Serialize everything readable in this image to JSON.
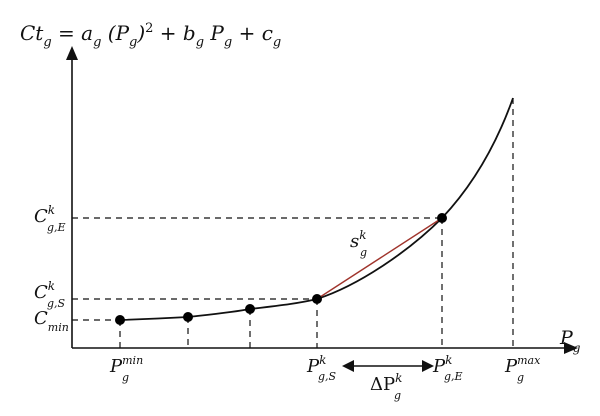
{
  "equation": {
    "prefix": "Ct",
    "sub_g": "g",
    "eq": " = a",
    "paren": " (P",
    "close_sq": ")",
    "sup_two": "2",
    "plus_b": " + b",
    "mid_p": " P",
    "plus_c": " + c"
  },
  "axis_x_label": {
    "main": "P",
    "sub": "g"
  },
  "y_labels": {
    "c_e": {
      "main": "C",
      "sup": "k",
      "sub": "g,E"
    },
    "c_s": {
      "main": "C",
      "sup": "k",
      "sub": "g,S"
    },
    "c_min": {
      "main": "C",
      "sub": "min"
    }
  },
  "x_labels": {
    "p_min": {
      "main": "P",
      "sup": "min",
      "sub": "g"
    },
    "p_s": {
      "main": "P",
      "sup": "k",
      "sub": "g,S"
    },
    "p_e": {
      "main": "P",
      "sup": "k",
      "sub": "g,E"
    },
    "p_max": {
      "main": "P",
      "sup": "max",
      "sub": "g"
    }
  },
  "slope_label": {
    "main": "s",
    "sup": "k",
    "sub": "g"
  },
  "delta_label": {
    "main": "ΔP",
    "sup": "k",
    "sub": "g"
  },
  "colors": {
    "secant": "#a0342c",
    "ink": "#111111"
  },
  "icons": {
    "arrow": "double-arrow-icon"
  }
}
